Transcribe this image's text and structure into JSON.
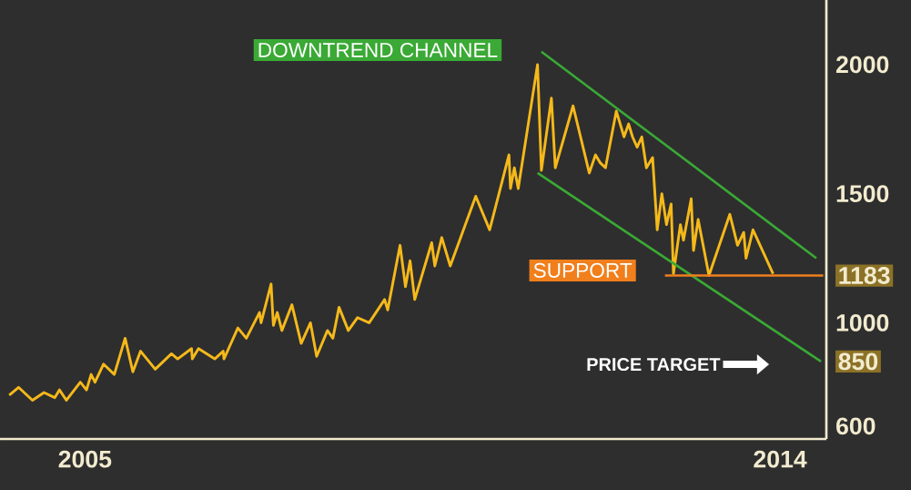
{
  "chart_data": {
    "type": "line",
    "x": [
      2004.02,
      2004.14,
      2004.32,
      2004.47,
      2004.61,
      2004.67,
      2004.76,
      2004.94,
      2005.02,
      2005.08,
      2005.13,
      2005.24,
      2005.38,
      2005.52,
      2005.62,
      2005.72,
      2005.91,
      2006.12,
      2006.2,
      2006.38,
      2006.39,
      2006.47,
      2006.68,
      2006.79,
      2006.8,
      2006.98,
      2007.09,
      2007.26,
      2007.28,
      2007.41,
      2007.44,
      2007.49,
      2007.55,
      2007.68,
      2007.8,
      2007.92,
      2008.0,
      2008.14,
      2008.21,
      2008.29,
      2008.41,
      2008.53,
      2008.68,
      2008.88,
      2008.92,
      2009.08,
      2009.15,
      2009.21,
      2009.27,
      2009.49,
      2009.53,
      2009.62,
      2009.73,
      2010.06,
      2010.24,
      2010.49,
      2010.51,
      2010.56,
      2010.61,
      2010.86,
      2010.91,
      2011.04,
      2011.09,
      2011.32,
      2011.53,
      2011.61,
      2011.67,
      2011.74,
      2011.88,
      2011.98,
      2012.04,
      2012.09,
      2012.15,
      2012.21,
      2012.27,
      2012.35,
      2012.41,
      2012.47,
      2012.53,
      2012.59,
      2012.62,
      2012.71,
      2012.75,
      2012.85,
      2012.88,
      2012.94,
      2013.08,
      2013.35,
      2013.45,
      2013.53,
      2013.56,
      2013.65,
      2013.91
    ],
    "series": [
      {
        "color": "#f5b91a",
        "values": [
          720,
          750,
          700,
          730,
          710,
          740,
          700,
          770,
          740,
          800,
          770,
          840,
          800,
          940,
          810,
          890,
          820,
          880,
          860,
          900,
          860,
          900,
          860,
          890,
          860,
          980,
          940,
          1040,
          1000,
          1150,
          990,
          1040,
          970,
          1070,
          920,
          1000,
          870,
          970,
          940,
          1060,
          970,
          1020,
          1000,
          1090,
          1050,
          1300,
          1140,
          1240,
          1090,
          1310,
          1220,
          1330,
          1220,
          1490,
          1360,
          1650,
          1520,
          1600,
          1520,
          2000,
          1590,
          1870,
          1600,
          1840,
          1580,
          1650,
          1620,
          1600,
          1820,
          1720,
          1770,
          1720,
          1680,
          1720,
          1600,
          1640,
          1360,
          1500,
          1380,
          1460,
          1190,
          1380,
          1320,
          1480,
          1280,
          1400,
          1183,
          1420,
          1300,
          1350,
          1250,
          1360,
          1190
        ]
      },
      {
        "color": "#3aa935",
        "x": [
          2010.91,
          2014.47
        ],
        "values": [
          2050,
          1250
        ]
      },
      {
        "color": "#3aa935",
        "x": [
          2010.86,
          2014.53
        ],
        "values": [
          1580,
          850
        ]
      },
      {
        "color": "#f07f1c",
        "x": [
          2012.51,
          2014.56
        ],
        "values": [
          1183,
          1183
        ]
      }
    ],
    "xlim": [
      2003.9,
      2014.6
    ],
    "ylim": [
      550,
      2250
    ],
    "xticks": [
      2005,
      2014
    ],
    "yticks": [
      600,
      850,
      1000,
      1183,
      1500,
      2000
    ],
    "annotations": [
      "DOWNTREND CHANNEL",
      "SUPPORT",
      "PRICE TARGET"
    ],
    "marker": "none",
    "line_style": "solid"
  }
}
